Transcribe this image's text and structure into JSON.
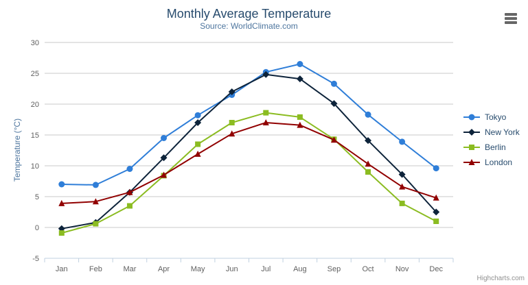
{
  "chart_data": {
    "type": "line",
    "title": "Monthly Average Temperature",
    "subtitle": "Source: WorldClimate.com",
    "xlabel": "",
    "ylabel": "Temperature (°C)",
    "categories": [
      "Jan",
      "Feb",
      "Mar",
      "Apr",
      "May",
      "Jun",
      "Jul",
      "Aug",
      "Sep",
      "Oct",
      "Nov",
      "Dec"
    ],
    "series": [
      {
        "name": "Tokyo",
        "color": "#2f7ed8",
        "marker": "circle",
        "values": [
          7.0,
          6.9,
          9.5,
          14.5,
          18.2,
          21.5,
          25.2,
          26.5,
          23.3,
          18.3,
          13.9,
          9.6
        ]
      },
      {
        "name": "New York",
        "color": "#0d233a",
        "marker": "diamond",
        "values": [
          -0.2,
          0.8,
          5.7,
          11.3,
          17.0,
          22.0,
          24.8,
          24.1,
          20.1,
          14.1,
          8.6,
          2.5
        ]
      },
      {
        "name": "Berlin",
        "color": "#8bbc21",
        "marker": "square",
        "values": [
          -0.9,
          0.6,
          3.5,
          8.4,
          13.5,
          17.0,
          18.6,
          17.9,
          14.3,
          9.0,
          3.9,
          1.0
        ]
      },
      {
        "name": "London",
        "color": "#910000",
        "marker": "triangle",
        "values": [
          3.9,
          4.2,
          5.7,
          8.5,
          11.9,
          15.2,
          17.0,
          16.6,
          14.2,
          10.3,
          6.6,
          4.8
        ]
      }
    ],
    "ylim": [
      -5,
      30
    ],
    "yticks": [
      -5,
      0,
      5,
      10,
      15,
      20,
      25,
      30
    ],
    "grid": true,
    "legend_position": "right"
  },
  "palette": {
    "title_text": "#274b6d",
    "subtitle_text": "#4d759e",
    "axis_title_text": "#4d759e",
    "axis_label_text": "#606060",
    "axis_line": "#c0d0e0",
    "gridline": "#c8c8c8",
    "legend_text": "#274b6d",
    "credits_text": "#909090",
    "menu_icon": "#666666",
    "background": "#ffffff"
  },
  "credits": {
    "label": "Highcharts.com"
  },
  "icons": {
    "menu": "hamburger-icon"
  }
}
